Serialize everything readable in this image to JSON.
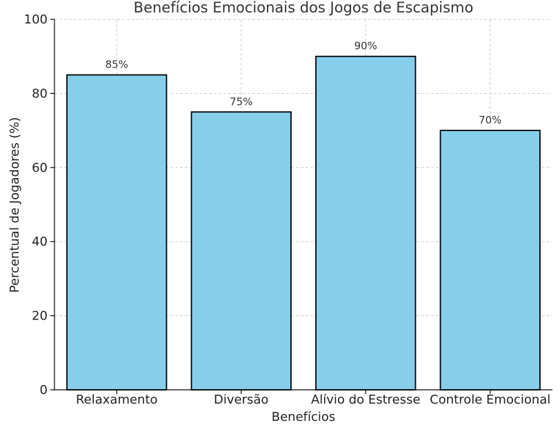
{
  "chart_data": {
    "type": "bar",
    "title": "Benefícios Emocionais dos Jogos de Escapismo",
    "xlabel": "Benefícios",
    "ylabel": "Percentual de Jogadores (%)",
    "categories": [
      "Relaxamento",
      "Diversão",
      "Alívio do Estresse",
      "Controle Emocional"
    ],
    "values": [
      85,
      75,
      90,
      70
    ],
    "value_labels": [
      "85%",
      "75%",
      "90%",
      "70%"
    ],
    "ylim": [
      0,
      100
    ],
    "yticks": [
      0,
      20,
      40,
      60,
      80,
      100
    ],
    "grid": true,
    "bar_color": "#87CEEB",
    "bar_edge_color": "#000000"
  }
}
